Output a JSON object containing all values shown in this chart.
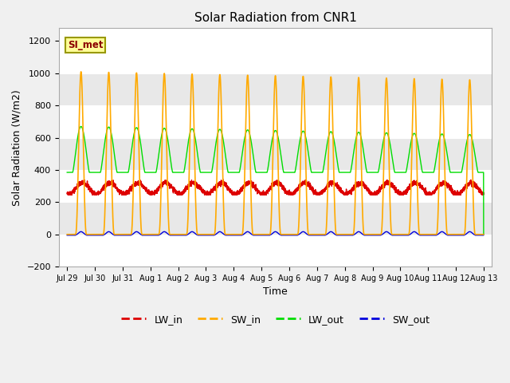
{
  "title": "Solar Radiation from CNR1",
  "xlabel": "Time",
  "ylabel": "Solar Radiation (W/m2)",
  "ylim": [
    -200,
    1280
  ],
  "yticks": [
    -200,
    0,
    200,
    400,
    600,
    800,
    1000,
    1200
  ],
  "xlim_days": [
    -0.3,
    15.3
  ],
  "annotation_text": "SI_met",
  "line_colors": {
    "LW_in": "#dd0000",
    "SW_in": "#ffaa00",
    "LW_out": "#00dd00",
    "SW_out": "#0000dd"
  },
  "n_days": 15,
  "samples_per_day": 288,
  "LW_in_base": 285,
  "LW_in_amp": 35,
  "SW_in_peak_early": 1010,
  "SW_in_peak_late": 960,
  "LW_out_base": 385,
  "LW_out_peak_early": 670,
  "LW_out_peak_late": 620,
  "SW_out_peak": 20,
  "xtick_labels": [
    "Jul 29",
    "Jul 30",
    "Jul 31",
    "Aug 1",
    "Aug 2",
    "Aug 3",
    "Aug 4",
    "Aug 5",
    "Aug 6",
    "Aug 7",
    "Aug 8",
    "Aug 9",
    "Aug 10",
    "Aug 11",
    "Aug 12",
    "Aug 13"
  ],
  "band_colors": [
    "#ffffff",
    "#e8e8e8"
  ]
}
